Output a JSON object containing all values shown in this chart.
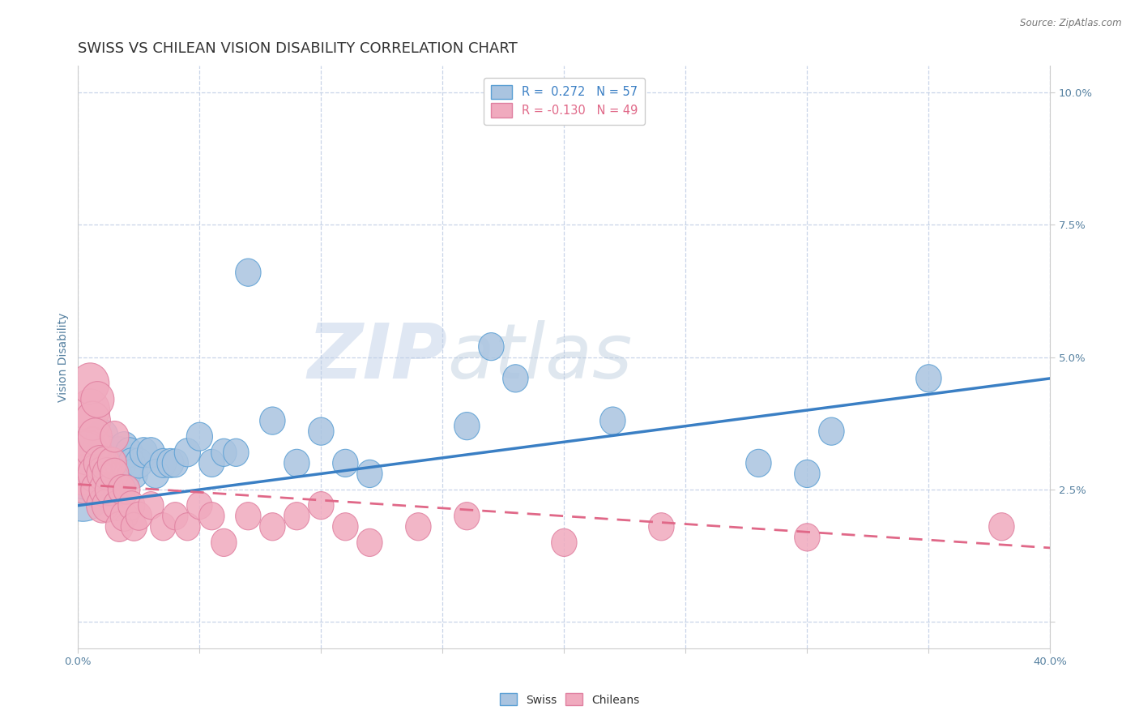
{
  "title": "SWISS VS CHILEAN VISION DISABILITY CORRELATION CHART",
  "source": "Source: ZipAtlas.com",
  "ylabel_label": "Vision Disability",
  "xlim": [
    0.0,
    0.4
  ],
  "ylim": [
    -0.005,
    0.105
  ],
  "xticks": [
    0.0,
    0.05,
    0.1,
    0.15,
    0.2,
    0.25,
    0.3,
    0.35,
    0.4
  ],
  "yticks": [
    0.0,
    0.025,
    0.05,
    0.075,
    0.1
  ],
  "swiss_R": 0.272,
  "swiss_N": 57,
  "chilean_R": -0.13,
  "chilean_N": 49,
  "swiss_color": "#aac4e0",
  "chilean_color": "#f0aabe",
  "swiss_edge_color": "#5a9fd4",
  "chilean_edge_color": "#e080a0",
  "swiss_line_color": "#3a7fc4",
  "chilean_line_color": "#e06888",
  "background_color": "#ffffff",
  "grid_color": "#c8d4e8",
  "watermark_zip": "ZIP",
  "watermark_atlas": "atlas",
  "title_fontsize": 13,
  "axis_label_fontsize": 10,
  "tick_fontsize": 9.5,
  "swiss_line_start_y": 0.022,
  "swiss_line_end_y": 0.046,
  "chilean_line_start_y": 0.026,
  "chilean_line_end_y": 0.014,
  "swiss_x": [
    0.002,
    0.003,
    0.004,
    0.005,
    0.005,
    0.006,
    0.006,
    0.007,
    0.007,
    0.008,
    0.008,
    0.009,
    0.009,
    0.01,
    0.01,
    0.01,
    0.011,
    0.011,
    0.012,
    0.012,
    0.013,
    0.014,
    0.015,
    0.016,
    0.017,
    0.018,
    0.019,
    0.02,
    0.021,
    0.022,
    0.023,
    0.025,
    0.027,
    0.03,
    0.032,
    0.035,
    0.038,
    0.04,
    0.045,
    0.05,
    0.055,
    0.06,
    0.065,
    0.07,
    0.08,
    0.09,
    0.1,
    0.11,
    0.12,
    0.16,
    0.17,
    0.18,
    0.22,
    0.28,
    0.3,
    0.31,
    0.35
  ],
  "swiss_y": [
    0.025,
    0.028,
    0.03,
    0.03,
    0.032,
    0.028,
    0.033,
    0.027,
    0.031,
    0.025,
    0.03,
    0.028,
    0.033,
    0.025,
    0.03,
    0.035,
    0.028,
    0.032,
    0.027,
    0.03,
    0.025,
    0.03,
    0.03,
    0.028,
    0.032,
    0.03,
    0.033,
    0.028,
    0.032,
    0.03,
    0.028,
    0.03,
    0.032,
    0.032,
    0.028,
    0.03,
    0.03,
    0.03,
    0.032,
    0.035,
    0.03,
    0.032,
    0.032,
    0.066,
    0.038,
    0.03,
    0.036,
    0.03,
    0.028,
    0.037,
    0.052,
    0.046,
    0.038,
    0.03,
    0.028,
    0.036,
    0.046
  ],
  "swiss_sizes": [
    200,
    130,
    100,
    90,
    85,
    80,
    75,
    75,
    70,
    70,
    68,
    65,
    65,
    65,
    62,
    60,
    60,
    58,
    58,
    55,
    55,
    55,
    52,
    52,
    50,
    50,
    48,
    48,
    45,
    45,
    45,
    45,
    45,
    45,
    42,
    42,
    42,
    40,
    40,
    40,
    38,
    38,
    38,
    38,
    38,
    38,
    38,
    38,
    38,
    38,
    38,
    38,
    38,
    38,
    38,
    38,
    38
  ],
  "chilean_x": [
    0.002,
    0.003,
    0.004,
    0.005,
    0.005,
    0.006,
    0.006,
    0.007,
    0.007,
    0.008,
    0.008,
    0.009,
    0.01,
    0.01,
    0.011,
    0.011,
    0.012,
    0.012,
    0.013,
    0.014,
    0.015,
    0.015,
    0.016,
    0.017,
    0.018,
    0.019,
    0.02,
    0.022,
    0.023,
    0.025,
    0.03,
    0.035,
    0.04,
    0.045,
    0.05,
    0.055,
    0.06,
    0.07,
    0.08,
    0.09,
    0.1,
    0.11,
    0.12,
    0.14,
    0.16,
    0.2,
    0.24,
    0.3,
    0.38
  ],
  "chilean_y": [
    0.03,
    0.027,
    0.032,
    0.04,
    0.045,
    0.033,
    0.038,
    0.028,
    0.035,
    0.042,
    0.025,
    0.03,
    0.022,
    0.028,
    0.025,
    0.03,
    0.022,
    0.028,
    0.025,
    0.03,
    0.035,
    0.028,
    0.022,
    0.018,
    0.025,
    0.02,
    0.025,
    0.022,
    0.018,
    0.02,
    0.022,
    0.018,
    0.02,
    0.018,
    0.022,
    0.02,
    0.015,
    0.02,
    0.018,
    0.02,
    0.022,
    0.018,
    0.015,
    0.018,
    0.02,
    0.015,
    0.018,
    0.016,
    0.018
  ],
  "chilean_sizes": [
    200,
    120,
    100,
    90,
    85,
    80,
    75,
    70,
    68,
    65,
    65,
    62,
    60,
    58,
    58,
    55,
    55,
    52,
    50,
    50,
    48,
    48,
    45,
    45,
    45,
    45,
    42,
    42,
    40,
    40,
    38,
    38,
    38,
    38,
    38,
    38,
    38,
    38,
    38,
    38,
    38,
    38,
    38,
    38,
    38,
    38,
    38,
    38,
    38
  ]
}
